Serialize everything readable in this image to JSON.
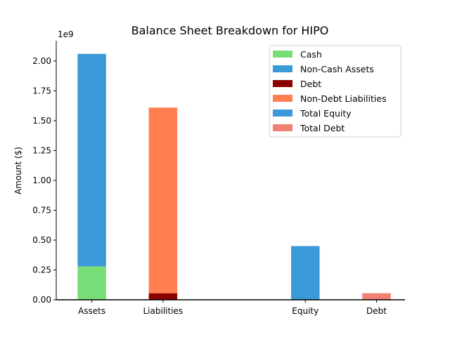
{
  "chart_data": {
    "type": "bar",
    "title": "Balance Sheet Breakdown for HIPO",
    "ylabel": "Amount ($)",
    "xlabel": "",
    "y_offset_label": "1e9",
    "ylim": [
      0,
      2.17
    ],
    "y_ticks": [
      "0.00",
      "0.25",
      "0.50",
      "0.75",
      "1.00",
      "1.25",
      "1.50",
      "1.75",
      "2.00"
    ],
    "y_tick_values": [
      0,
      0.25,
      0.5,
      0.75,
      1.0,
      1.25,
      1.5,
      1.75,
      2.0
    ],
    "categories": [
      "Assets",
      "Liabilities",
      "Equity",
      "Debt"
    ],
    "category_positions": [
      0,
      1,
      3,
      4
    ],
    "grid": false,
    "legend_position": "top-right",
    "series": [
      {
        "name": "Cash",
        "color": "#77dd77",
        "category": "Assets",
        "base": 0,
        "value": 0.28
      },
      {
        "name": "Non-Cash Assets",
        "color": "#3a9ad9",
        "category": "Assets",
        "base": 0.28,
        "value": 1.78
      },
      {
        "name": "Debt",
        "color": "#8b0000",
        "category": "Liabilities",
        "base": 0,
        "value": 0.055
      },
      {
        "name": "Non-Debt Liabilities",
        "color": "#ff7f50",
        "category": "Liabilities",
        "base": 0.055,
        "value": 1.555
      },
      {
        "name": "Total Equity",
        "color": "#3a9ad9",
        "category": "Equity",
        "base": 0,
        "value": 0.45
      },
      {
        "name": "Total Debt",
        "color": "#f08072",
        "category": "Debt",
        "base": 0,
        "value": 0.055
      }
    ]
  }
}
